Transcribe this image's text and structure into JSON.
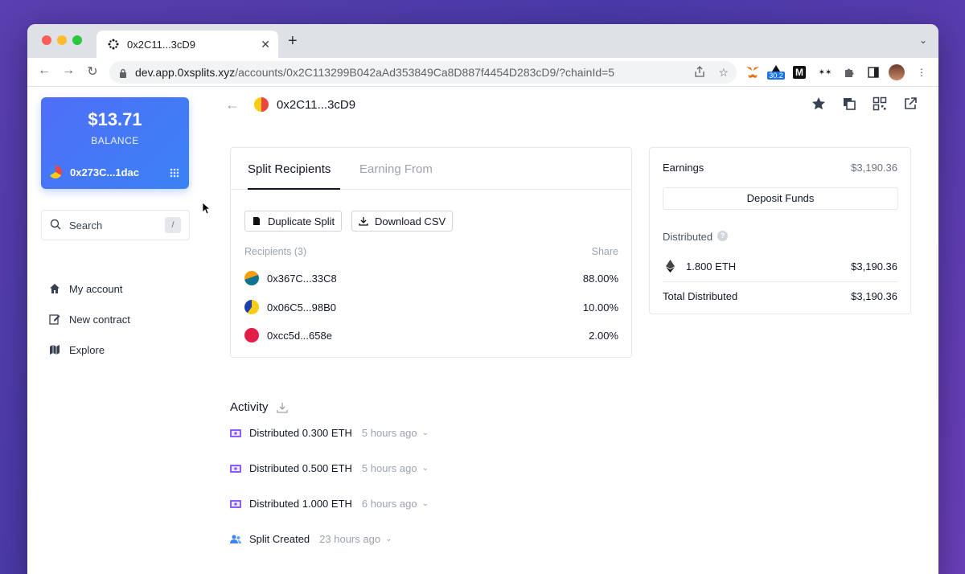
{
  "browser": {
    "tab_title": "0x2C11...3cD9",
    "url_host": "dev.app.0xsplits.xyz",
    "url_path": "/accounts/0x2C113299B042aAd353849Ca8D887f4454D283cD9/?chainId=5",
    "extension_badge": "30.2",
    "extension_m": "M",
    "extension_dots": "✶✶"
  },
  "sidebar": {
    "balance_amount": "$13.71",
    "balance_label": "BALANCE",
    "account_address": "0x273C...1dac",
    "search_label": "Search",
    "search_shortcut": "/",
    "nav": [
      {
        "label": "My account",
        "icon": "home-icon"
      },
      {
        "label": "New contract",
        "icon": "edit-icon"
      },
      {
        "label": "Explore",
        "icon": "map-icon"
      }
    ]
  },
  "header": {
    "title": "0x2C11...3cD9"
  },
  "recipients_panel": {
    "tabs": [
      "Split Recipients",
      "Earning From"
    ],
    "duplicate_label": "Duplicate Split",
    "download_label": "Download CSV",
    "recipients_heading": "Recipients (3)",
    "share_heading": "Share",
    "rows": [
      {
        "address": "0x367C...33C8",
        "share": "88.00%"
      },
      {
        "address": "0x06C5...98B0",
        "share": "10.00%"
      },
      {
        "address": "0xcc5d...658e",
        "share": "2.00%"
      }
    ]
  },
  "earnings_panel": {
    "earnings_label": "Earnings",
    "earnings_value": "$3,190.36",
    "deposit_label": "Deposit Funds",
    "distributed_label": "Distributed",
    "help_glyph": "?",
    "token_amount": "1.800 ETH",
    "token_value": "$3,190.36",
    "total_label": "Total Distributed",
    "total_value": "$3,190.36"
  },
  "activity": {
    "title": "Activity",
    "items": [
      {
        "label": "Distributed 0.300 ETH",
        "time": "5 hours ago"
      },
      {
        "label": "Distributed 0.500 ETH",
        "time": "5 hours ago"
      },
      {
        "label": "Distributed 1.000 ETH",
        "time": "6 hours ago"
      },
      {
        "label": "Split Created",
        "time": "23 hours ago"
      }
    ]
  },
  "colors": {
    "balance_gradient_start": "#4f6ef7",
    "balance_gradient_end": "#3b82f6",
    "activity_icon": "#8b5cf6",
    "split_created_icon": "#3b82f6"
  }
}
